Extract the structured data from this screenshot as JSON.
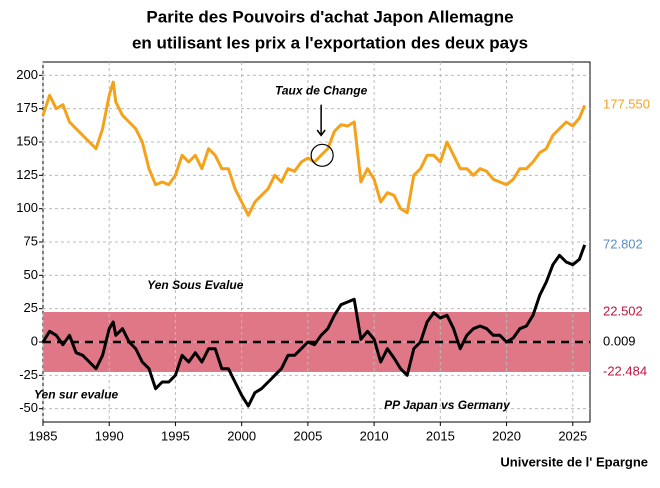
{
  "chart_data": {
    "type": "line",
    "title": "Parite des Pouvoirs d'achat Japon Allemagne",
    "subtitle": "en utilisant les prix a l'exportation des deux pays",
    "source": "Universite de l' Epargne",
    "x": [
      1985,
      1985.5,
      1986,
      1986.5,
      1987,
      1987.5,
      1988,
      1988.5,
      1989,
      1989.5,
      1990,
      1990.3,
      1990.5,
      1991,
      1991.5,
      1992,
      1992.5,
      1993,
      1993.5,
      1994,
      1994.5,
      1995,
      1995.5,
      1996,
      1996.5,
      1997,
      1997.5,
      1998,
      1998.5,
      1999,
      1999.5,
      2000,
      2000.5,
      2001,
      2001.5,
      2002,
      2002.5,
      2003,
      2003.5,
      2004,
      2004.5,
      2005,
      2005.5,
      2006,
      2006.5,
      2007,
      2007.5,
      2008,
      2008.5,
      2009,
      2009.5,
      2010,
      2010.5,
      2011,
      2011.5,
      2012,
      2012.5,
      2013,
      2013.5,
      2014,
      2014.5,
      2015,
      2015.5,
      2016,
      2016.5,
      2017,
      2017.5,
      2018,
      2018.5,
      2019,
      2019.5,
      2020,
      2020.5,
      2021,
      2021.5,
      2022,
      2022.5,
      2023,
      2023.5,
      2024,
      2024.5,
      2025,
      2025.5,
      2025.9
    ],
    "series": [
      {
        "color": "#f5a21b",
        "values": [
          170,
          185,
          175,
          178,
          165,
          160,
          155,
          150,
          145,
          160,
          185,
          195,
          180,
          170,
          165,
          160,
          150,
          130,
          118,
          120,
          118,
          125,
          140,
          135,
          140,
          130,
          145,
          140,
          130,
          130,
          115,
          105,
          95,
          105,
          110,
          115,
          125,
          120,
          130,
          128,
          135,
          138,
          135,
          140,
          145,
          158,
          163,
          162,
          165,
          120,
          130,
          122,
          105,
          112,
          110,
          100,
          97,
          125,
          130,
          140,
          140,
          135,
          150,
          140,
          130,
          130,
          125,
          130,
          128,
          122,
          120,
          118,
          122,
          130,
          130,
          135,
          142,
          145,
          155,
          160,
          165,
          162,
          168,
          177.55
        ]
      },
      {
        "color": "#000000",
        "values": [
          0,
          8,
          5,
          -2,
          5,
          -8,
          -10,
          -15,
          -20,
          -10,
          10,
          15,
          5,
          10,
          0,
          -5,
          -15,
          -20,
          -35,
          -30,
          -30,
          -25,
          -10,
          -15,
          -8,
          -15,
          -5,
          -5,
          -20,
          -20,
          -30,
          -40,
          -48,
          -38,
          -35,
          -30,
          -25,
          -20,
          -10,
          -10,
          -5,
          0,
          -2,
          5,
          10,
          20,
          28,
          30,
          32,
          2,
          8,
          2,
          -15,
          -5,
          -12,
          -20,
          -25,
          -5,
          0,
          15,
          22,
          18,
          20,
          10,
          -5,
          5,
          10,
          12,
          10,
          5,
          5,
          0,
          3,
          10,
          12,
          20,
          35,
          45,
          58,
          65,
          60,
          58,
          62,
          72.802
        ]
      }
    ],
    "band": {
      "range": [
        -22.484,
        22.502
      ],
      "color": "#e07786"
    },
    "reference_line": {
      "value": 0.009,
      "color": "#000000"
    },
    "end_labels": [
      {
        "value": 177.55,
        "label": "177.550",
        "color": "#f5a21b"
      },
      {
        "value": 72.802,
        "label": "72.802",
        "color": "#5b8cc8"
      },
      {
        "value": 22.502,
        "label": "22.502",
        "color": "#c0143c"
      },
      {
        "value": 0.009,
        "label": "0.009",
        "color": "#000000"
      },
      {
        "value": -22.484,
        "label": "-22.484",
        "color": "#c0143c"
      }
    ],
    "annotations": [
      "Taux de Change",
      "Yen Sous Evalue",
      "Yen sur evalue",
      "PP Japan vs Germany"
    ],
    "xlim": [
      1985,
      2026.3
    ],
    "ylim": [
      -60,
      210
    ],
    "xticks": [
      1985,
      1990,
      1995,
      2000,
      2005,
      2010,
      2015,
      2020,
      2025
    ],
    "yticks": [
      -50,
      -25,
      0,
      25,
      50,
      75,
      100,
      125,
      150,
      175,
      200
    ],
    "grid": true
  }
}
